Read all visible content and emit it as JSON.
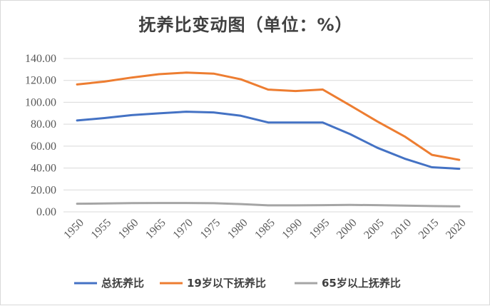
{
  "chart_data": {
    "type": "line",
    "title": "抚养比变动图（单位：%）",
    "x": [
      "1950",
      "1955",
      "1960",
      "1965",
      "1970",
      "1975",
      "1980",
      "1985",
      "1990",
      "1995",
      "2000",
      "2005",
      "2010",
      "2015",
      "2020"
    ],
    "ylim": [
      0,
      140
    ],
    "yticks": [
      "0.00",
      "20.00",
      "40.00",
      "60.00",
      "80.00",
      "100.00",
      "120.00",
      "140.00"
    ],
    "grid": true,
    "legend_position": "bottom",
    "series": [
      {
        "name": "总抚养比",
        "color": "#4472C4",
        "values": [
          83.4,
          85.6,
          88.3,
          89.9,
          91.4,
          90.8,
          87.7,
          81.6,
          81.6,
          81.6,
          71.0,
          58.5,
          48.6,
          40.7,
          39.3
        ]
      },
      {
        "name": "19岁以下抚养比",
        "color": "#ED7D31",
        "values": [
          116.3,
          118.9,
          122.6,
          125.7,
          127.1,
          126.2,
          121.0,
          111.6,
          110.3,
          111.7,
          97.2,
          82.5,
          68.8,
          52.0,
          47.5
        ]
      },
      {
        "name": "65岁以上抚养比",
        "color": "#A5A5A5",
        "values": [
          7.4,
          7.6,
          8.0,
          8.1,
          8.1,
          7.9,
          7.1,
          5.9,
          5.9,
          6.1,
          6.3,
          6.1,
          5.7,
          5.3,
          5.0
        ]
      }
    ]
  }
}
